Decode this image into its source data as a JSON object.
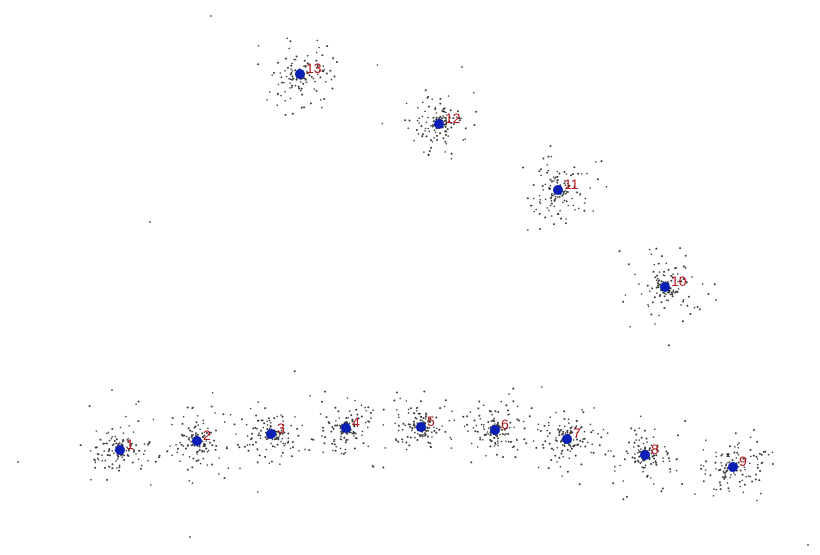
{
  "chart_data": {
    "type": "scatter",
    "title": "",
    "xlabel": "",
    "ylabel": "",
    "grid": false,
    "legend": "none",
    "colors": {
      "points": "#3a3a3a",
      "centers": "#0a1fb4",
      "labels": "#b5141a",
      "background": "#ffffff"
    },
    "clusters": [
      {
        "label": "1",
        "center": [
          120,
          105
        ]
      },
      {
        "label": "2",
        "center": [
          197,
          114
        ]
      },
      {
        "label": "3",
        "center": [
          271,
          121
        ]
      },
      {
        "label": "4",
        "center": [
          346,
          127
        ]
      },
      {
        "label": "5",
        "center": [
          421,
          128
        ]
      },
      {
        "label": "6",
        "center": [
          495,
          125
        ]
      },
      {
        "label": "7",
        "center": [
          567,
          116
        ]
      },
      {
        "label": "8",
        "center": [
          645,
          100
        ]
      },
      {
        "label": "9",
        "center": [
          733,
          88
        ]
      },
      {
        "label": "10",
        "center": [
          665,
          268
        ]
      },
      {
        "label": "11",
        "center": [
          558,
          365
        ]
      },
      {
        "label": "12",
        "center": [
          439,
          431
        ]
      },
      {
        "label": "13",
        "center": [
          300,
          481
        ]
      }
    ]
  }
}
